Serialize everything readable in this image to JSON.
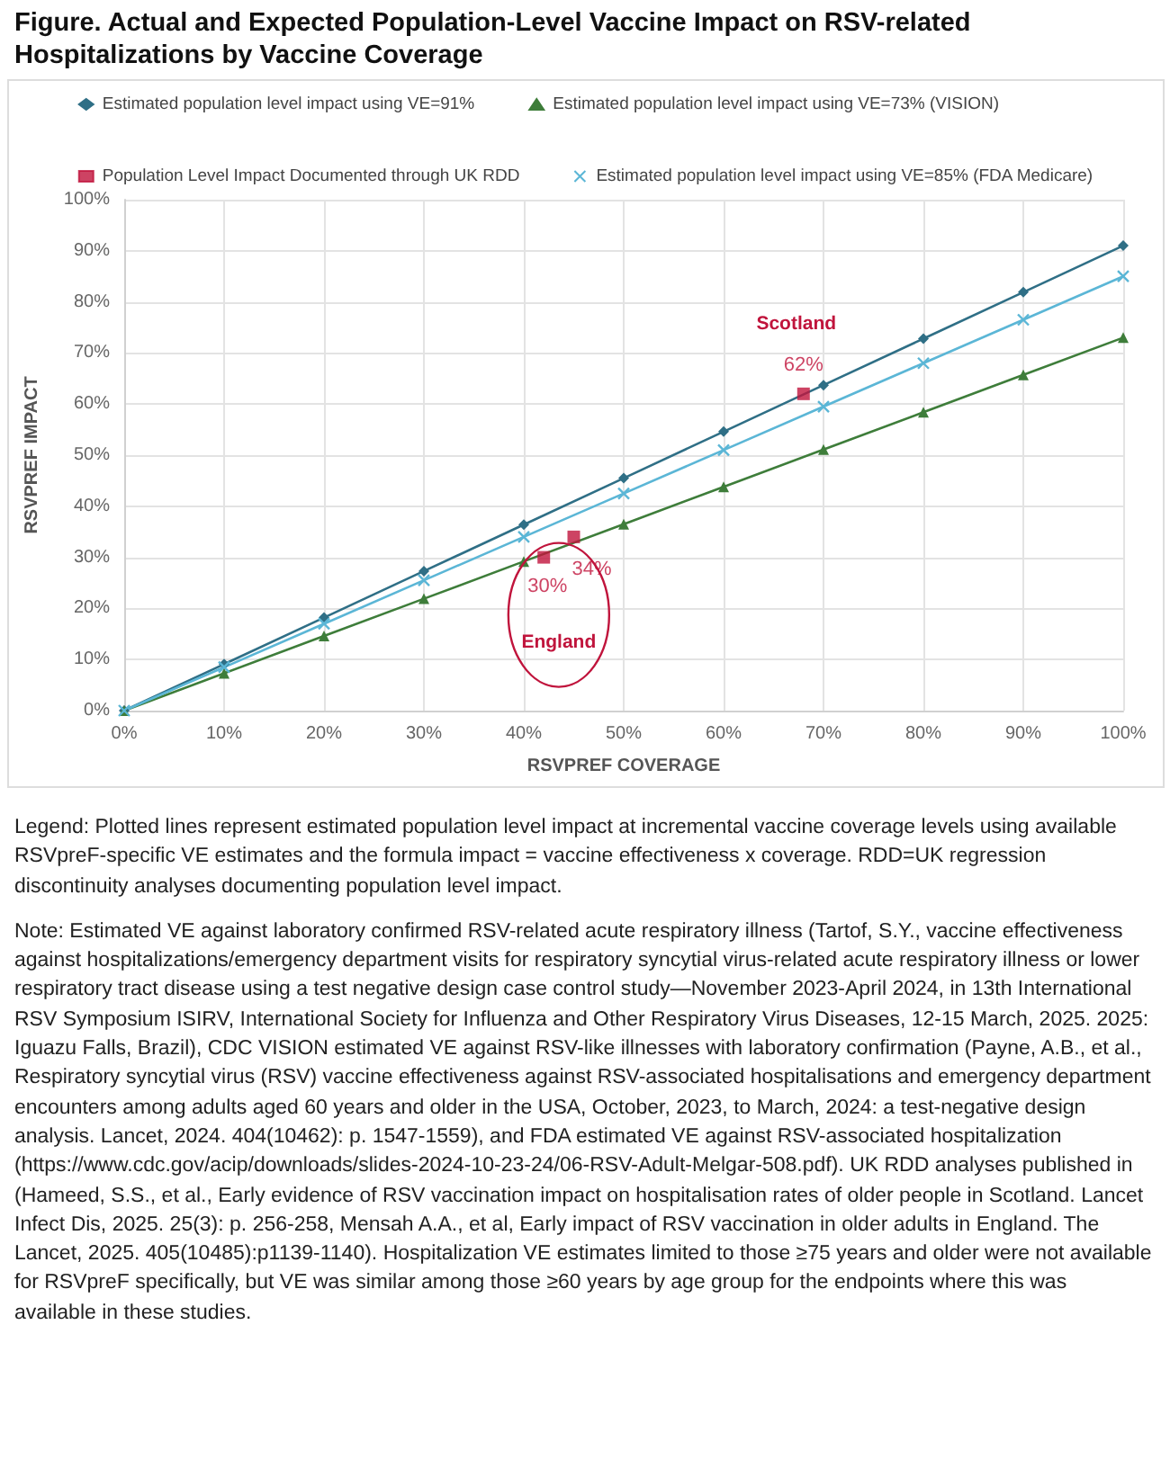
{
  "chart_data": {
    "type": "line",
    "title": "Figure. Actual and Expected Population-Level Vaccine Impact on RSV-related Hospitalizations by Vaccine Coverage",
    "xlabel": "RSVPREF COVERAGE",
    "ylabel": "RSVPREF IMPACT",
    "x": [
      0,
      10,
      20,
      30,
      40,
      50,
      60,
      70,
      80,
      90,
      100
    ],
    "series": [
      {
        "name": "Estimated population level impact using VE=91%",
        "color": "#2f6f86",
        "marker": "diamond",
        "values": [
          0,
          9.1,
          18.2,
          27.3,
          36.4,
          45.5,
          54.6,
          63.7,
          72.8,
          81.9,
          91
        ]
      },
      {
        "name": "Estimated population level impact using VE=73% (VISION)",
        "color": "#3e7d3a",
        "marker": "triangle",
        "values": [
          0,
          7.3,
          14.6,
          21.9,
          29.2,
          36.5,
          43.8,
          51.1,
          58.4,
          65.7,
          73
        ]
      },
      {
        "name": "Population Level Impact Documented through UK RDD",
        "type": "scatter",
        "color": "#c0143c",
        "marker": "square",
        "x": [
          42,
          45,
          68
        ],
        "values": [
          30,
          34,
          62
        ],
        "value_labels": [
          "30%",
          "34%",
          "62%"
        ]
      },
      {
        "name": "Estimated population level impact using VE=85% (FDA Medicare)",
        "color": "#5bb6d6",
        "marker": "cross",
        "values": [
          0,
          8.5,
          17,
          25.5,
          34,
          42.5,
          51,
          59.5,
          68,
          76.5,
          85
        ]
      }
    ],
    "xlim": [
      0,
      100
    ],
    "xticks": [
      {
        "value": 0,
        "label": "0%"
      },
      {
        "value": 10,
        "label": "10%"
      },
      {
        "value": 20,
        "label": "20%"
      },
      {
        "value": 30,
        "label": "30%"
      },
      {
        "value": 40,
        "label": "40%"
      },
      {
        "value": 50,
        "label": "50%"
      },
      {
        "value": 60,
        "label": "60%"
      },
      {
        "value": 70,
        "label": "70%"
      },
      {
        "value": 80,
        "label": "80%"
      },
      {
        "value": 90,
        "label": "90%"
      },
      {
        "value": 100,
        "label": "100%"
      }
    ],
    "ylim": [
      0,
      100
    ],
    "yticks": [
      {
        "value": 0,
        "label": "0%"
      },
      {
        "value": 10,
        "label": "10%"
      },
      {
        "value": 20,
        "label": "20%"
      },
      {
        "value": 30,
        "label": "30%"
      },
      {
        "value": 40,
        "label": "40%"
      },
      {
        "value": 50,
        "label": "50%"
      },
      {
        "value": 60,
        "label": "60%"
      },
      {
        "value": 70,
        "label": "70%"
      },
      {
        "value": 80,
        "label": "80%"
      },
      {
        "value": 90,
        "label": "90%"
      },
      {
        "value": 100,
        "label": "100%"
      }
    ],
    "grid": true,
    "legend": "top",
    "line_style": "solid",
    "annotations": [
      "England",
      "Scotland",
      "Legend: Plotted lines represent estimated population level impact at incremental vaccine coverage levels using available RSVpreF-specific VE estimates and the formula impact = vaccine effectiveness x coverage. RDD=UK regression discontinuity analyses documenting population level impact.",
      "Note: Estimated VE against laboratory confirmed RSV-related acute respiratory illness (Tartof, S.Y., vaccine effectiveness against hospitalizations/emergency department visits for respiratory syncytial virus-related acute respiratory illness or lower respiratory tract disease using a test negative design case control study—November 2023-April 2024, in 13th International RSV Symposium ISIRV, International Society for Influenza and Other Respiratory Virus Diseases, 12-15 March, 2025. 2025: Iguazu Falls, Brazil), CDC VISION estimated VE against RSV-like illnesses with laboratory confirmation (Payne, A.B., et al., Respiratory syncytial virus (RSV) vaccine effectiveness against RSV-associated hospitalisations and emergency department encounters among adults aged 60 years and older in the USA, October, 2023, to March, 2024: a test-negative design analysis. Lancet, 2024. 404(10462): p. 1547-1559), and FDA estimated VE against RSV-associated hospitalization (https://www.cdc.gov/acip/downloads/slides-2024-10-23-24/06-RSV-Adult-Melgar-508.pdf). UK RDD analyses published in (Hameed, S.S., et al., Early evidence of RSV vaccination impact on hospitalisation rates of older people in Scotland. Lancet Infect Dis, 2025. 25(3): p. 256-258, Mensah A.A., et al, Early impact of RSV vaccination in older adults in England. The Lancet, 2025. 405(10485):p1139-1140). Hospitalization VE estimates limited to those ≥75 years and older were not available for RSVpreF specifically, but VE was similar among those ≥60 years by age group for the endpoints where this was available in these studies."
    ]
  }
}
